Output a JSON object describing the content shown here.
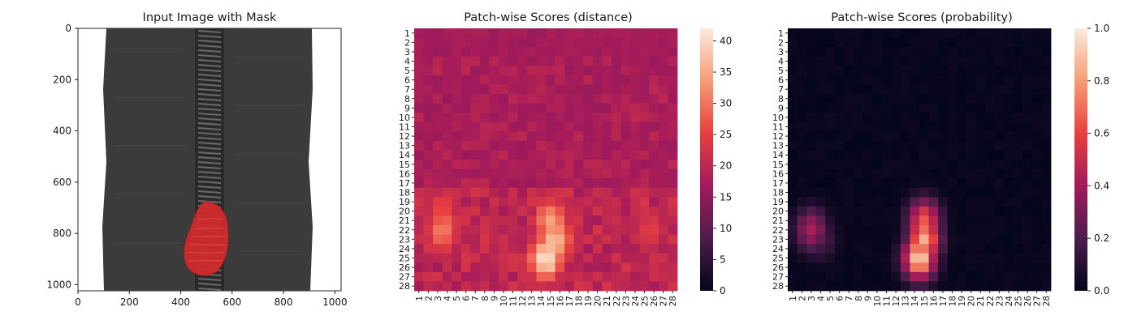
{
  "chart_data": [
    {
      "type": "image",
      "title": "Input Image with Mask",
      "xticks": [
        "0",
        "200",
        "400",
        "600",
        "800",
        "1000"
      ],
      "yticks": [
        "0",
        "200",
        "400",
        "600",
        "800",
        "1000"
      ],
      "image_extent": [
        1024,
        1024
      ],
      "content": "zipper photo with red defect mask",
      "colors": {
        "fabric": "#3b3b3b",
        "teeth": "#5a5a5a",
        "mask": "#d42a2a",
        "background": "#ffffff"
      }
    },
    {
      "type": "heatmap",
      "title": "Patch-wise Scores (distance)",
      "rows": [
        "1",
        "2",
        "3",
        "4",
        "5",
        "6",
        "7",
        "8",
        "9",
        "10",
        "11",
        "12",
        "13",
        "14",
        "15",
        "16",
        "17",
        "18",
        "19",
        "20",
        "21",
        "22",
        "23",
        "24",
        "25",
        "26",
        "27",
        "28"
      ],
      "cols": [
        "1",
        "2",
        "3",
        "4",
        "5",
        "6",
        "7",
        "8",
        "9",
        "10",
        "11",
        "12",
        "13",
        "14",
        "15",
        "16",
        "17",
        "18",
        "19",
        "20",
        "21",
        "22",
        "23",
        "24",
        "25",
        "26",
        "27",
        "28"
      ],
      "colormap": "rocket",
      "vmin": 0,
      "vmax": 42,
      "colorbar_ticks": [
        "0",
        "5",
        "10",
        "15",
        "20",
        "25",
        "30",
        "35",
        "40"
      ],
      "base_level": 17,
      "hotspots": [
        {
          "row": 25,
          "col": 14.5,
          "value": 42
        },
        {
          "row": 23,
          "col": 15.5,
          "value": 38
        },
        {
          "row": 21,
          "col": 15,
          "value": 34
        },
        {
          "row": 22,
          "col": 3.5,
          "value": 31
        },
        {
          "row": 20,
          "col": 3.5,
          "value": 27
        },
        {
          "row": 22,
          "col": 25.5,
          "value": 24
        }
      ]
    },
    {
      "type": "heatmap",
      "title": "Patch-wise Scores (probability)",
      "rows": [
        "1",
        "2",
        "3",
        "4",
        "5",
        "6",
        "7",
        "8",
        "9",
        "10",
        "11",
        "12",
        "13",
        "14",
        "15",
        "16",
        "17",
        "18",
        "19",
        "20",
        "21",
        "22",
        "23",
        "24",
        "25",
        "26",
        "27",
        "28"
      ],
      "cols": [
        "1",
        "2",
        "3",
        "4",
        "5",
        "6",
        "7",
        "8",
        "9",
        "10",
        "11",
        "12",
        "13",
        "14",
        "15",
        "16",
        "17",
        "18",
        "19",
        "20",
        "21",
        "22",
        "23",
        "24",
        "25",
        "26",
        "27",
        "28"
      ],
      "colormap": "rocket",
      "vmin": 0,
      "vmax": 1,
      "colorbar_ticks": [
        "0.0",
        "0.2",
        "0.4",
        "0.6",
        "0.8",
        "1.0"
      ],
      "base_level": 0,
      "hotspots": [
        {
          "row": 25,
          "col": 14.5,
          "value": 0.95
        },
        {
          "row": 23,
          "col": 15,
          "value": 0.85
        },
        {
          "row": 21,
          "col": 15,
          "value": 0.65
        },
        {
          "row": 22,
          "col": 3,
          "value": 0.42
        },
        {
          "row": 23,
          "col": 4,
          "value": 0.2
        }
      ]
    }
  ]
}
